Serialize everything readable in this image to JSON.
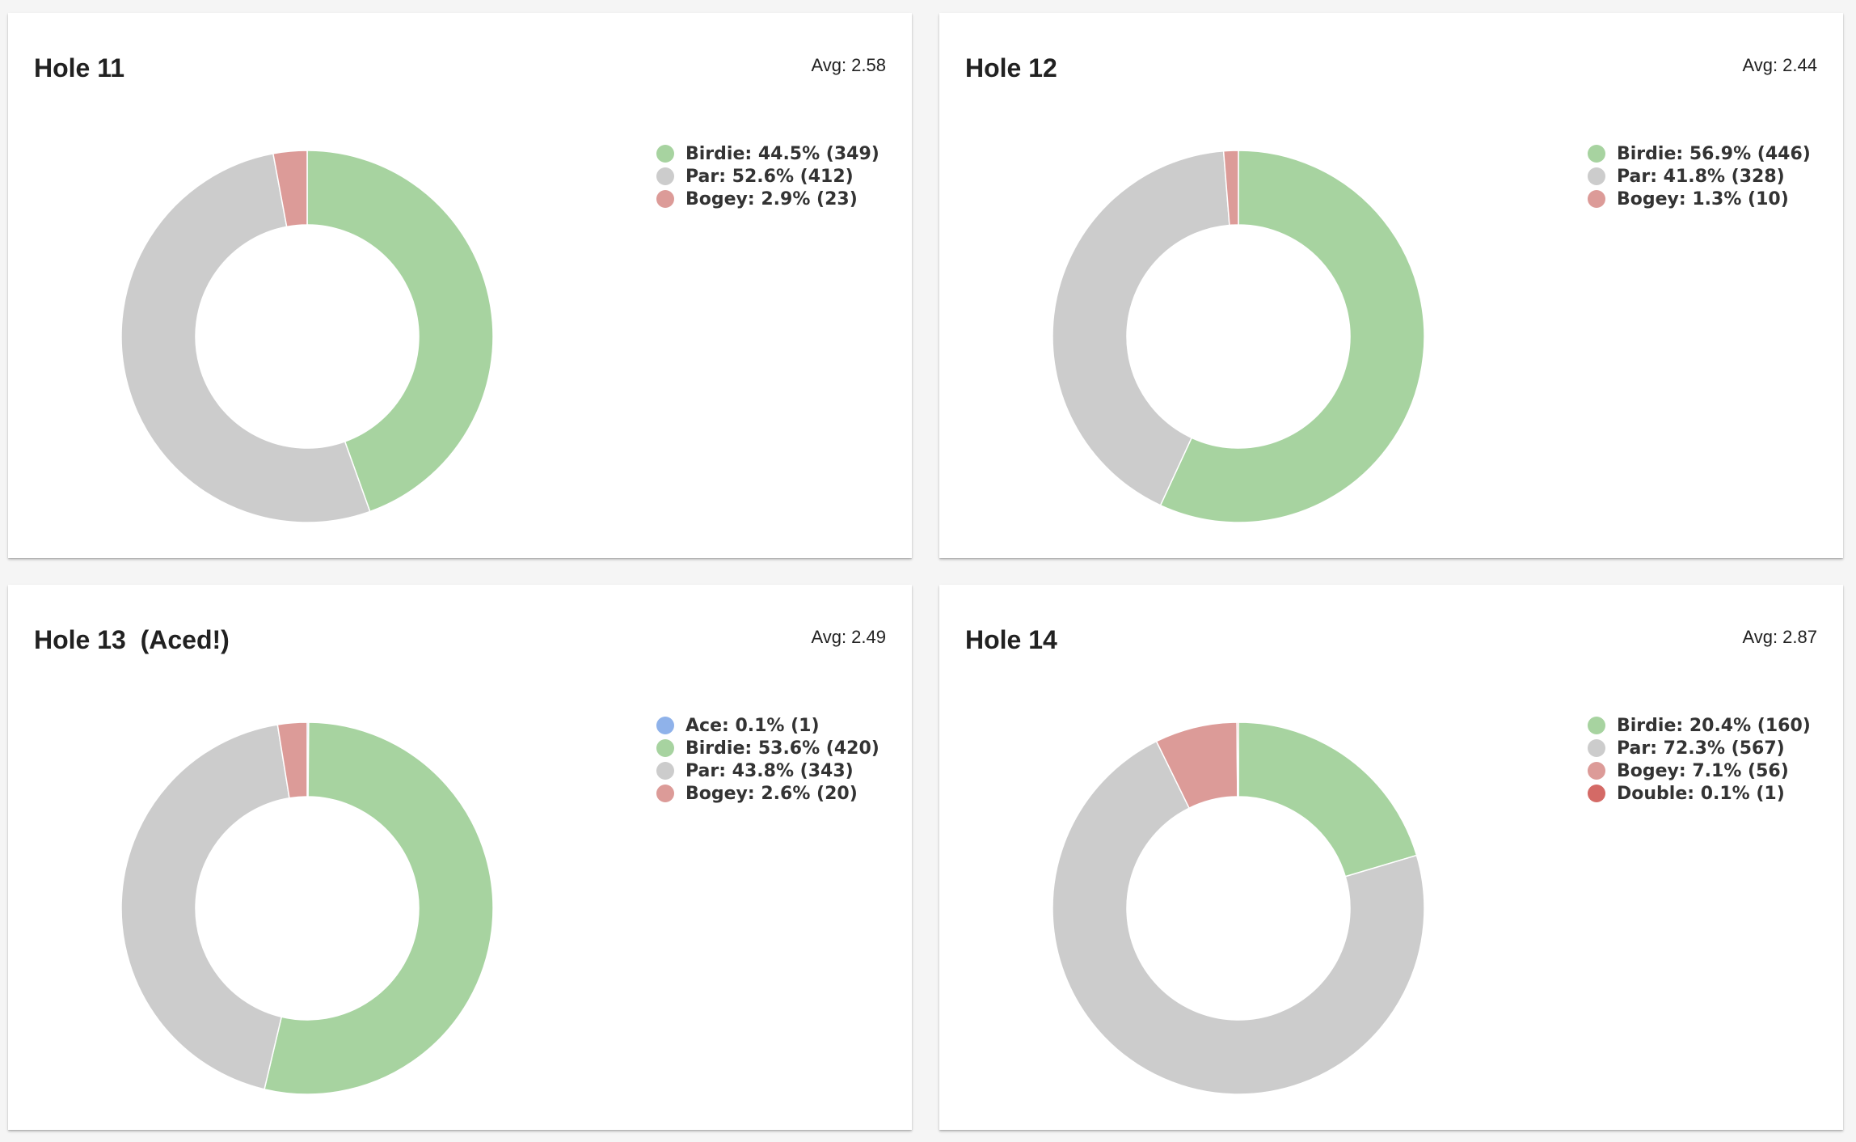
{
  "chart_data": [
    {
      "type": "pie",
      "variant": "donut",
      "title": "Hole 11",
      "avg_label": "Avg: 2.58",
      "legend_position": "top-right",
      "slices": [
        {
          "label": "Birdie: 44.5% (349)",
          "name": "Birdie",
          "percent": 44.5,
          "count": 349,
          "color": "#a7d3a0"
        },
        {
          "label": "Par: 52.6% (412)",
          "name": "Par",
          "percent": 52.6,
          "count": 412,
          "color": "#cccccc"
        },
        {
          "label": "Bogey: 2.9% (23)",
          "name": "Bogey",
          "percent": 2.9,
          "count": 23,
          "color": "#dc9b98"
        }
      ]
    },
    {
      "type": "pie",
      "variant": "donut",
      "title": "Hole 12",
      "avg_label": "Avg: 2.44",
      "legend_position": "top-right",
      "slices": [
        {
          "label": "Birdie: 56.9% (446)",
          "name": "Birdie",
          "percent": 56.9,
          "count": 446,
          "color": "#a7d3a0"
        },
        {
          "label": "Par: 41.8% (328)",
          "name": "Par",
          "percent": 41.8,
          "count": 328,
          "color": "#cccccc"
        },
        {
          "label": "Bogey: 1.3% (10)",
          "name": "Bogey",
          "percent": 1.3,
          "count": 10,
          "color": "#dc9b98"
        }
      ]
    },
    {
      "type": "pie",
      "variant": "donut",
      "title": "Hole 13  (Aced!)",
      "avg_label": "Avg: 2.49",
      "legend_position": "top-right",
      "slices": [
        {
          "label": "Ace: 0.1% (1)",
          "name": "Ace",
          "percent": 0.1,
          "count": 1,
          "color": "#8fb2ea"
        },
        {
          "label": "Birdie: 53.6% (420)",
          "name": "Birdie",
          "percent": 53.6,
          "count": 420,
          "color": "#a7d3a0"
        },
        {
          "label": "Par: 43.8% (343)",
          "name": "Par",
          "percent": 43.8,
          "count": 343,
          "color": "#cccccc"
        },
        {
          "label": "Bogey: 2.6% (20)",
          "name": "Bogey",
          "percent": 2.6,
          "count": 20,
          "color": "#dc9b98"
        }
      ]
    },
    {
      "type": "pie",
      "variant": "donut",
      "title": "Hole 14",
      "avg_label": "Avg: 2.87",
      "legend_position": "top-right",
      "slices": [
        {
          "label": "Birdie: 20.4% (160)",
          "name": "Birdie",
          "percent": 20.4,
          "count": 160,
          "color": "#a7d3a0"
        },
        {
          "label": "Par: 72.3% (567)",
          "name": "Par",
          "percent": 72.3,
          "count": 567,
          "color": "#cccccc"
        },
        {
          "label": "Bogey: 7.1% (56)",
          "name": "Bogey",
          "percent": 7.1,
          "count": 56,
          "color": "#dc9b98"
        },
        {
          "label": "Double: 0.1% (1)",
          "name": "Double",
          "percent": 0.1,
          "count": 1,
          "color": "#d46a66"
        }
      ]
    }
  ]
}
